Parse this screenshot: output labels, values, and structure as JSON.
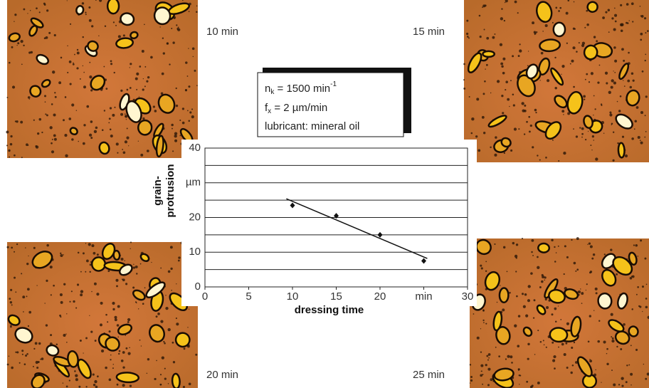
{
  "captions": [
    "10 min",
    "15 min",
    "20 min",
    "25 min"
  ],
  "annotation": {
    "line1": {
      "base": "n",
      "sub": "k",
      "text": " = 1500 min",
      "sup": "-1"
    },
    "line2": {
      "base": "f",
      "sub": "x",
      "text": " = 2 µm/min"
    },
    "line3": "lubricant: mineral oil"
  },
  "chart_data": {
    "type": "scatter",
    "y_label": [
      "grain-",
      "protrusion"
    ],
    "x_label": "dressing time",
    "xlim": [
      0,
      30
    ],
    "ylim": [
      0,
      40
    ],
    "xticks": [
      0,
      5,
      10,
      15,
      20,
      {
        "value": 25,
        "label": "min"
      },
      30
    ],
    "yticks": [
      0,
      10,
      20,
      {
        "value": 30,
        "label": "µm"
      },
      40
    ],
    "y_minor_ticks": [
      5,
      15,
      25,
      35
    ],
    "grid": true,
    "series": [
      {
        "color": "#111111",
        "x": [
          10,
          15,
          20,
          25
        ],
        "values": [
          23.5,
          20.5,
          15,
          7.5
        ]
      }
    ],
    "trendline": {
      "color": "#111111",
      "x": [
        9.3,
        25.4
      ],
      "values": [
        25.4,
        8.2
      ]
    }
  }
}
